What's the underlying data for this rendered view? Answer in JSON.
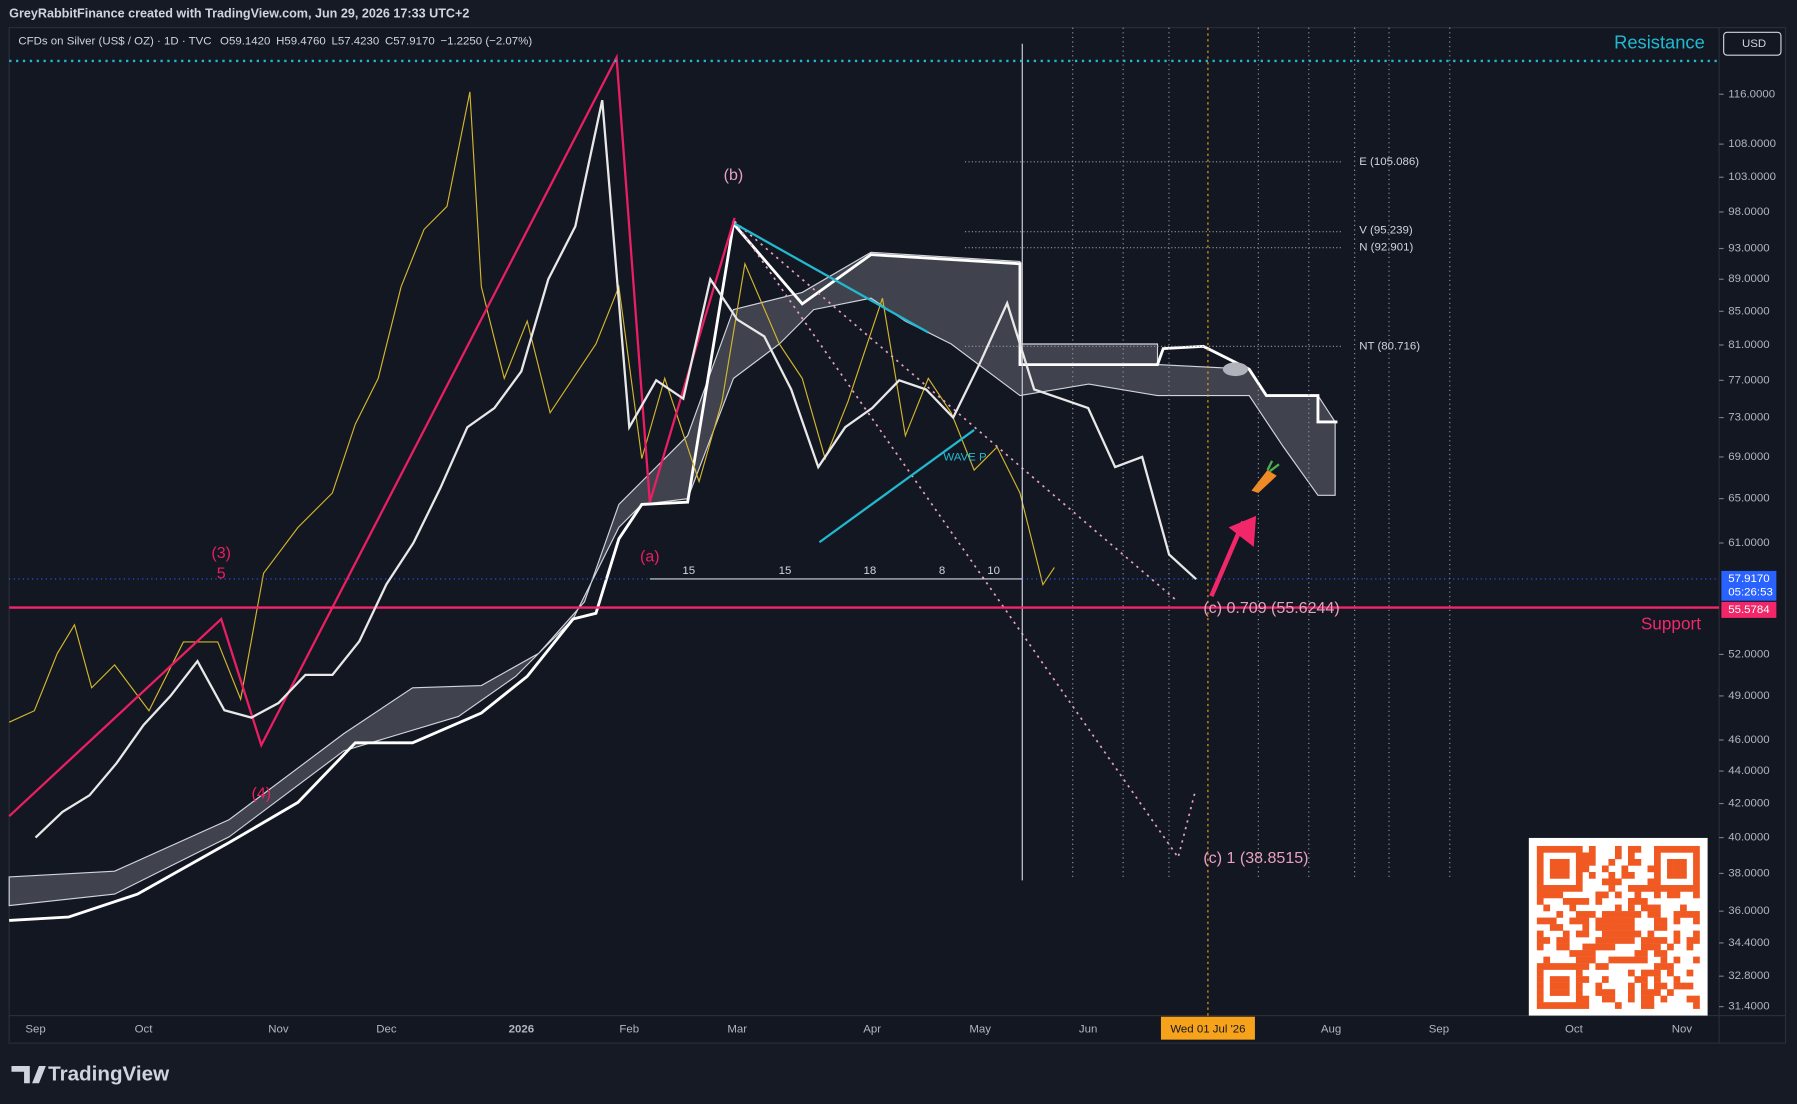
{
  "header": {
    "author": "GreyRabbitFinance created with TradingView.com, Jun 29, 2026 17:33 UTC+2"
  },
  "symbol": {
    "name": "CFDs on Silver (US$ / OZ) · 1D · TVC",
    "ohlc": [
      {
        "key": "O",
        "value": "59.1420"
      },
      {
        "key": "H",
        "value": "59.4760"
      },
      {
        "key": "L",
        "value": "57.4230"
      },
      {
        "key": "C",
        "value": "57.9170"
      }
    ],
    "change": "−1.2250 (−2.07%)"
  },
  "price_scale": {
    "currency": "USD",
    "last_price": "57.9170",
    "countdown": "05:26:53",
    "support_price": "55.5784"
  },
  "annotations": {
    "resistance": "Resistance",
    "support": "Support",
    "wave_b": "(b)",
    "wave_a": "(a)",
    "wave_3": "(3)",
    "wave_5": "5",
    "wave_4": "(4)",
    "levels": [
      "E (105.086)",
      "V (95.239)",
      "N (92.901)",
      "NT (80.716)"
    ],
    "targets": [
      "(c) 0.709 (55.6244)",
      "(c) 1 (38.8515)"
    ],
    "wave_p": "WAVE P",
    "counts": [
      "15",
      "15",
      "18",
      "8",
      "10"
    ]
  },
  "time_marker": "Wed 01 Jul '26",
  "footer": "TradingView",
  "chart_data": {
    "type": "line",
    "log_scale": true,
    "grid": false,
    "color": "#e8e8e8",
    "categories": [
      "Sep",
      null,
      null,
      null,
      "Oct",
      null,
      null,
      null,
      null,
      "Nov",
      null,
      null,
      null,
      "Dec",
      null,
      null,
      null,
      null,
      "2026",
      null,
      null,
      null,
      "Feb",
      null,
      null,
      null,
      "Mar",
      null,
      null,
      null,
      null,
      "Apr",
      null,
      null,
      null,
      "May",
      null,
      null,
      null,
      "Jun",
      null,
      null,
      null,
      null,
      null,
      null,
      null,
      null,
      "Aug",
      null,
      null,
      null,
      "Sep",
      null,
      null,
      null,
      null,
      "Oct",
      null,
      null,
      null,
      "Nov"
    ],
    "values": [
      40,
      41.5,
      42.5,
      44.5,
      47,
      49,
      51.5,
      48,
      47.5,
      48.5,
      50.5,
      50.5,
      53,
      57.5,
      61,
      66,
      72,
      74,
      78,
      89,
      96,
      115,
      72,
      77,
      75,
      89,
      84,
      82,
      76,
      68,
      72,
      74,
      77,
      76,
      73,
      79,
      86,
      76,
      75,
      74,
      68,
      69,
      60,
      57.917,
      null,
      null,
      null,
      null,
      null,
      null,
      null,
      null,
      null,
      null,
      null,
      null,
      null,
      null,
      null,
      null,
      null,
      null
    ],
    "ylim": [
      31,
      127.6
    ],
    "yticks": [
      {
        "value": 116,
        "label": "116.0000"
      },
      {
        "value": 108,
        "label": "108.0000"
      },
      {
        "value": 103,
        "label": "103.0000"
      },
      {
        "value": 98,
        "label": "98.0000"
      },
      {
        "value": 93,
        "label": "93.0000"
      },
      {
        "value": 89,
        "label": "89.0000"
      },
      {
        "value": 85,
        "label": "85.0000"
      },
      {
        "value": 81,
        "label": "81.0000"
      },
      {
        "value": 77,
        "label": "77.0000"
      },
      {
        "value": 73,
        "label": "73.0000"
      },
      {
        "value": 69,
        "label": "69.0000"
      },
      {
        "value": 65,
        "label": "65.0000"
      },
      {
        "value": 61,
        "label": "61.0000"
      },
      {
        "value": 52,
        "label": "52.0000"
      },
      {
        "value": 49,
        "label": "49.0000"
      },
      {
        "value": 46,
        "label": "46.0000"
      },
      {
        "value": 44,
        "label": "44.0000"
      },
      {
        "value": 42,
        "label": "42.0000"
      },
      {
        "value": 40,
        "label": "40.0000"
      },
      {
        "value": 38,
        "label": "38.0000"
      },
      {
        "value": 36,
        "label": "36.0000"
      },
      {
        "value": 34.4,
        "label": "34.4000"
      },
      {
        "value": 32.8,
        "label": "32.8000"
      },
      {
        "value": 31.4,
        "label": "31.4000"
      }
    ]
  }
}
